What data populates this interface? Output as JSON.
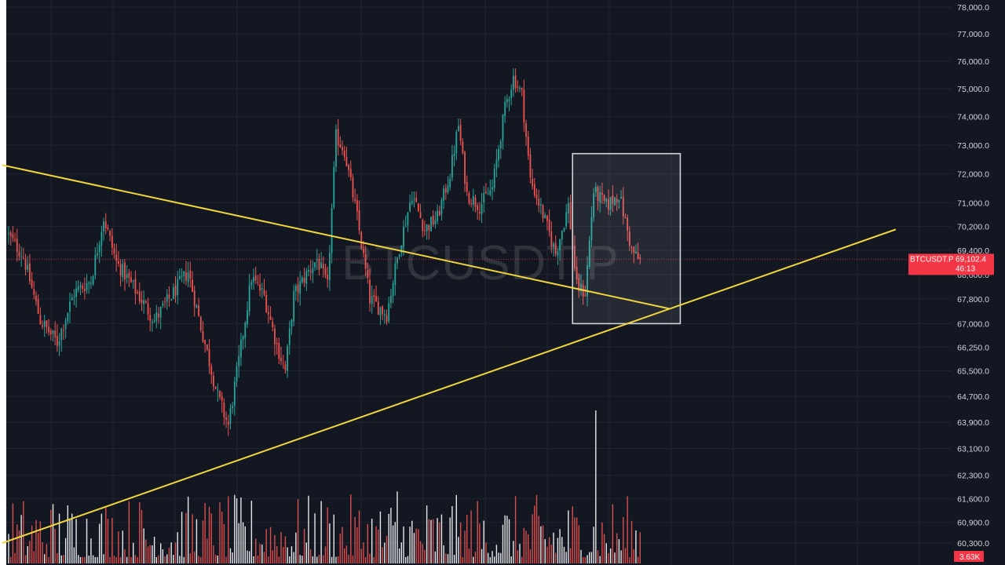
{
  "symbol_watermark": "BTCUSDT.P",
  "colors": {
    "background": "#131722",
    "grid": "#1f2430",
    "up": "#26a69a",
    "down": "#ef5350",
    "trendline": "#f0d53c",
    "box_border": "#cfd2d8",
    "badge": "#f23645",
    "axis_text": "#d1d4dc"
  },
  "price_badge": {
    "symbol": "BTCUSDT.P",
    "price": "69,102.4",
    "countdown": "46:13"
  },
  "volume_badge": "3.63K",
  "chart_data": {
    "type": "candlestick",
    "price_scale": "log",
    "y_ticks": [
      {
        "value": 78000,
        "label": "78,000.0"
      },
      {
        "value": 77000,
        "label": "77,000.0"
      },
      {
        "value": 76000,
        "label": "76,000.0"
      },
      {
        "value": 75000,
        "label": "75,000.0"
      },
      {
        "value": 74000,
        "label": "74,000.0"
      },
      {
        "value": 73000,
        "label": "73,000.0"
      },
      {
        "value": 72000,
        "label": "72,000.0"
      },
      {
        "value": 71000,
        "label": "71,000.0"
      },
      {
        "value": 70200,
        "label": "70,200.0"
      },
      {
        "value": 69400,
        "label": "69,400.0"
      },
      {
        "value": 68600,
        "label": "68,600.0"
      },
      {
        "value": 67800,
        "label": "67,800.0"
      },
      {
        "value": 67000,
        "label": "67,000.0"
      },
      {
        "value": 66250,
        "label": "66,250.0"
      },
      {
        "value": 65500,
        "label": "65,500.0"
      },
      {
        "value": 64700,
        "label": "64,700.0"
      },
      {
        "value": 63900,
        "label": "63,900.0"
      },
      {
        "value": 63100,
        "label": "63,100.0"
      },
      {
        "value": 62300,
        "label": "62,300.0"
      },
      {
        "value": 61600,
        "label": "61,600.0"
      },
      {
        "value": 60900,
        "label": "60,900.0"
      },
      {
        "value": 60300,
        "label": "60,300.0"
      }
    ],
    "candle_count": 300,
    "price_path": [
      [
        0,
        70000
      ],
      [
        8,
        69200
      ],
      [
        16,
        67100
      ],
      [
        24,
        66400
      ],
      [
        32,
        68000
      ],
      [
        40,
        68400
      ],
      [
        46,
        70500
      ],
      [
        52,
        69000
      ],
      [
        60,
        68200
      ],
      [
        70,
        67100
      ],
      [
        78,
        67900
      ],
      [
        86,
        68700
      ],
      [
        92,
        66900
      ],
      [
        100,
        64700
      ],
      [
        105,
        63800
      ],
      [
        110,
        65800
      ],
      [
        116,
        68500
      ],
      [
        122,
        67900
      ],
      [
        128,
        66300
      ],
      [
        132,
        65500
      ],
      [
        136,
        67900
      ],
      [
        142,
        68600
      ],
      [
        147,
        69100
      ],
      [
        152,
        68200
      ],
      [
        156,
        73300
      ],
      [
        160,
        72800
      ],
      [
        166,
        70500
      ],
      [
        172,
        67800
      ],
      [
        180,
        67300
      ],
      [
        186,
        69500
      ],
      [
        192,
        71300
      ],
      [
        198,
        70100
      ],
      [
        204,
        70500
      ],
      [
        210,
        72000
      ],
      [
        214,
        73700
      ],
      [
        218,
        71300
      ],
      [
        224,
        70900
      ],
      [
        230,
        71500
      ],
      [
        236,
        74300
      ],
      [
        240,
        75400
      ],
      [
        244,
        74800
      ],
      [
        248,
        71800
      ],
      [
        254,
        70600
      ],
      [
        260,
        69300
      ],
      [
        266,
        70900
      ],
      [
        270,
        68200
      ],
      [
        274,
        68000
      ],
      [
        278,
        71400
      ],
      [
        284,
        70900
      ],
      [
        290,
        71300
      ],
      [
        296,
        69400
      ],
      [
        299,
        69102
      ]
    ],
    "volume_spikes": [
      {
        "candle": 184,
        "scale": 0.47
      },
      {
        "candle": 209,
        "scale": 0.3
      },
      {
        "candle": 278,
        "scale": 1.0
      }
    ],
    "trendlines": [
      {
        "from": {
          "candle": -3,
          "price": 72300
        },
        "to": {
          "candle": 313,
          "price": 67480
        }
      },
      {
        "from": {
          "candle": -3,
          "price": 60300
        },
        "to": {
          "candle": 420,
          "price": 70100
        }
      }
    ],
    "highlight_box": {
      "from_candle": 267,
      "to_candle": 318,
      "price_top": 72700,
      "price_bottom": 67000
    }
  }
}
